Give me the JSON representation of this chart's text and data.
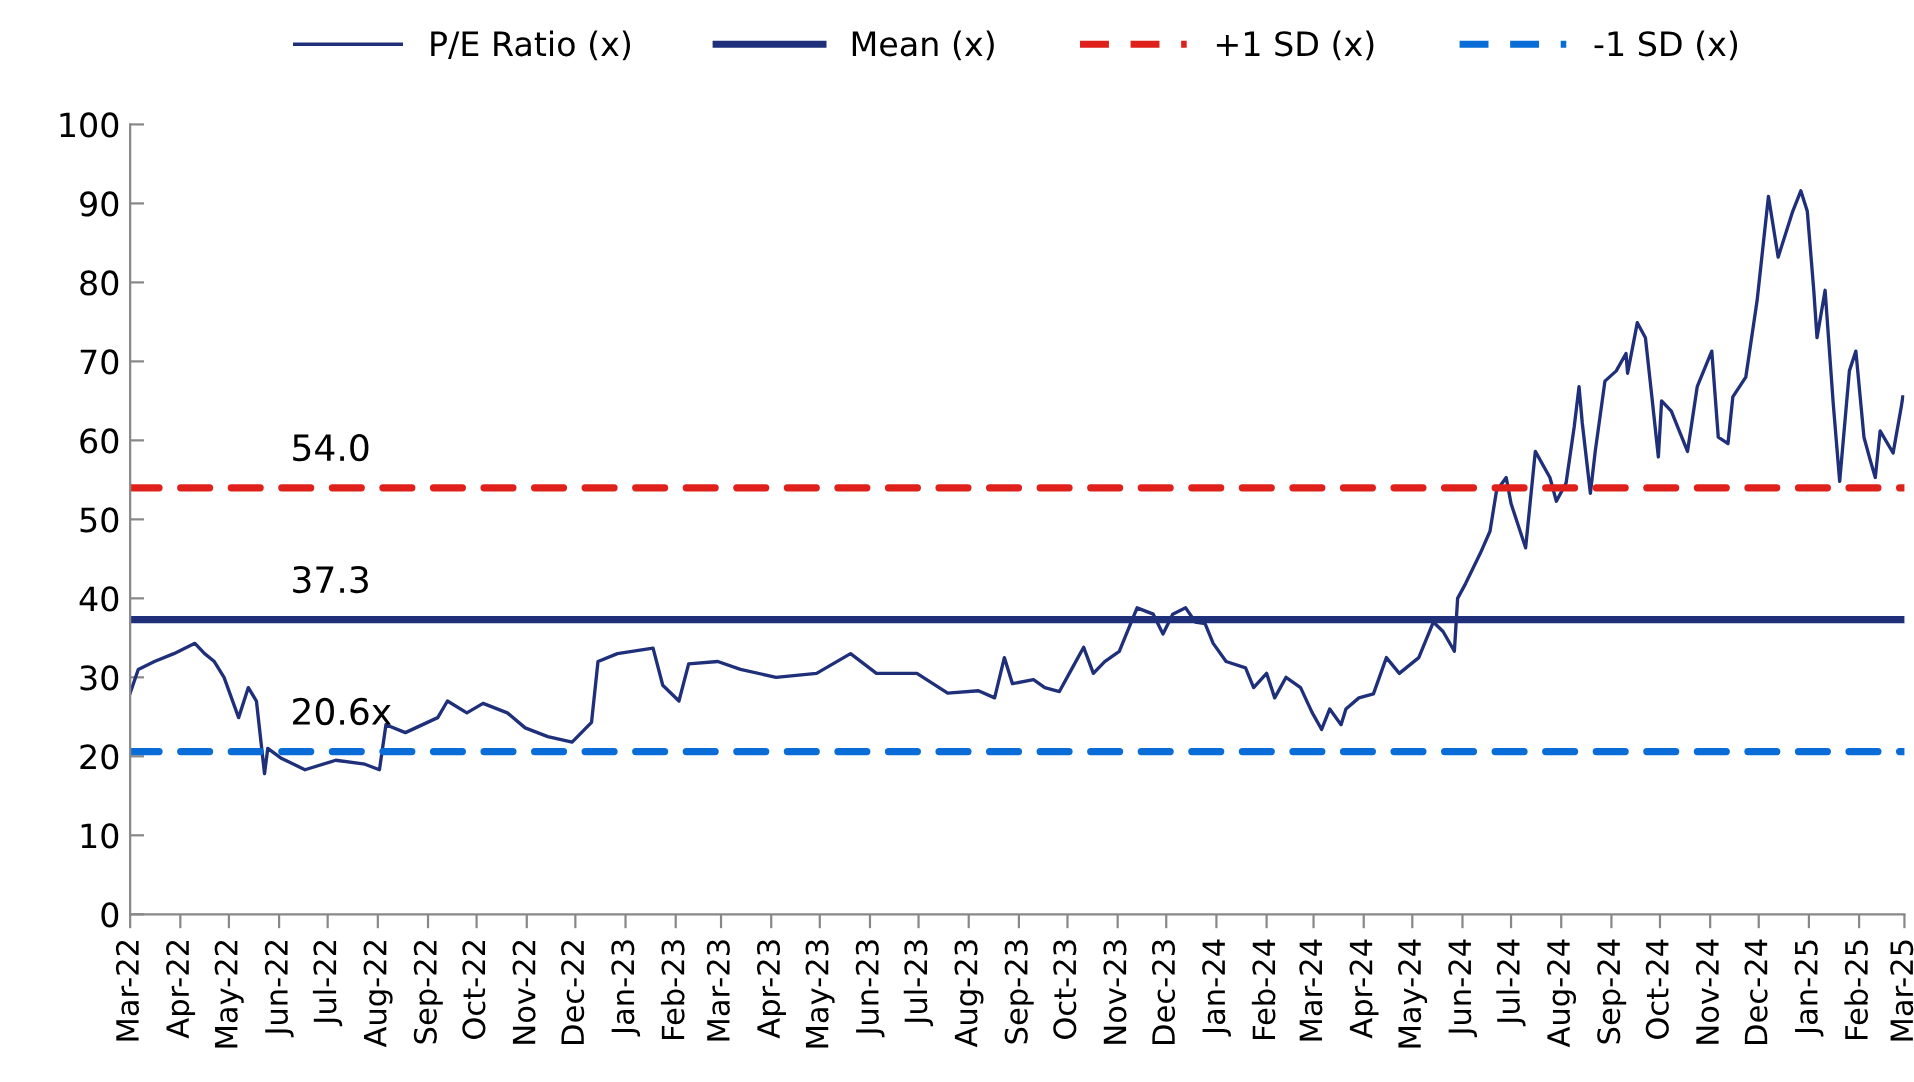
{
  "chart_data": {
    "type": "line",
    "series": [
      {
        "name": "P/E Ratio (x)",
        "color": "#1f2f7a",
        "x": [
          "2022-03-01",
          "2022-03-06",
          "2022-03-16",
          "2022-03-28",
          "2022-04-10",
          "2022-04-16",
          "2022-04-22",
          "2022-04-28",
          "2022-05-07",
          "2022-05-13",
          "2022-05-18",
          "2022-05-23",
          "2022-05-25",
          "2022-06-02",
          "2022-06-17",
          "2022-07-06",
          "2022-07-24",
          "2022-08-02",
          "2022-08-06",
          "2022-08-18",
          "2022-09-07",
          "2022-09-13",
          "2022-09-25",
          "2022-10-05",
          "2022-10-20",
          "2022-10-31",
          "2022-11-14",
          "2022-11-29",
          "2022-12-11",
          "2022-12-15",
          "2022-12-27",
          "2023-01-18",
          "2023-01-24",
          "2023-02-03",
          "2023-02-09",
          "2023-02-27",
          "2023-03-13",
          "2023-04-04",
          "2023-04-29",
          "2023-05-20",
          "2023-06-05",
          "2023-06-30",
          "2023-07-19",
          "2023-08-07",
          "2023-08-17",
          "2023-08-23",
          "2023-08-28",
          "2023-09-10",
          "2023-09-17",
          "2023-09-26",
          "2023-10-04",
          "2023-10-11",
          "2023-10-17",
          "2023-10-24",
          "2023-11-02",
          "2023-11-08",
          "2023-11-13",
          "2023-11-23",
          "2023-11-29",
          "2023-12-05",
          "2023-12-13",
          "2023-12-19",
          "2023-12-25",
          "2023-12-30",
          "2024-01-07",
          "2024-01-19",
          "2024-01-24",
          "2024-02-01",
          "2024-02-06",
          "2024-02-13",
          "2024-02-22",
          "2024-02-29",
          "2024-03-06",
          "2024-03-11",
          "2024-03-18",
          "2024-03-21",
          "2024-03-29",
          "2024-04-07",
          "2024-04-15",
          "2024-04-23",
          "2024-05-05",
          "2024-05-14",
          "2024-05-20",
          "2024-05-27",
          "2024-05-29",
          "2024-06-03",
          "2024-06-12",
          "2024-06-18",
          "2024-06-22",
          "2024-06-28",
          "2024-07-01",
          "2024-07-10",
          "2024-07-16",
          "2024-07-25",
          "2024-07-29",
          "2024-08-04",
          "2024-08-09",
          "2024-08-12",
          "2024-08-14",
          "2024-08-19",
          "2024-08-22",
          "2024-08-28",
          "2024-09-04",
          "2024-09-10",
          "2024-09-11",
          "2024-09-17",
          "2024-09-22",
          "2024-09-26",
          "2024-09-30",
          "2024-10-02",
          "2024-10-08",
          "2024-10-18",
          "2024-10-24",
          "2024-11-02",
          "2024-11-06",
          "2024-11-12",
          "2024-11-15",
          "2024-11-23",
          "2024-11-30",
          "2024-12-07",
          "2024-12-13",
          "2024-12-22",
          "2024-12-27",
          "2024-12-31",
          "2025-01-04",
          "2025-01-06",
          "2025-01-11",
          "2025-01-16",
          "2025-01-20",
          "2025-01-26",
          "2025-01-30",
          "2025-02-04",
          "2025-02-08",
          "2025-02-11",
          "2025-02-14",
          "2025-02-22",
          "2025-02-27",
          "2025-02-28"
        ],
        "values": [
          28,
          31,
          32,
          33,
          34.3,
          33,
          32,
          30,
          24.9,
          28.7,
          27,
          17.8,
          21,
          19.8,
          18.3,
          19.5,
          19,
          18.3,
          24,
          23,
          24.9,
          27,
          25.5,
          26.7,
          25.5,
          23.6,
          22.5,
          21.8,
          24.3,
          32,
          33,
          33.7,
          29,
          27,
          31.7,
          32,
          31,
          30,
          30.5,
          33,
          30.5,
          30.5,
          28,
          28.3,
          27.4,
          32.5,
          29.2,
          29.7,
          28.7,
          28.2,
          31.2,
          33.8,
          30.5,
          32,
          33.3,
          36.3,
          38.8,
          38,
          35.5,
          38,
          38.8,
          37,
          36.8,
          34.3,
          32,
          31.2,
          28.7,
          30.5,
          27.4,
          30,
          28.7,
          25.6,
          23.4,
          26,
          24,
          26,
          27.4,
          27.9,
          32.5,
          30.5,
          32.5,
          37,
          35.8,
          33.3,
          40,
          41.9,
          45.7,
          48.5,
          53.6,
          55.3,
          52,
          46.4,
          58.6,
          55.3,
          52.3,
          54.6,
          61.7,
          66.8,
          62.2,
          53.3,
          58.6,
          67.5,
          68.8,
          71,
          68.5,
          74.9,
          73,
          65.5,
          57.9,
          65,
          63.7,
          58.6,
          66.8,
          71.3,
          60.4,
          59.6,
          65.5,
          68,
          77.7,
          90.9,
          83.2,
          89,
          91.6,
          89,
          79,
          73,
          79,
          64.7,
          54.8,
          68.8,
          71.3,
          60.4,
          57.4,
          55.3,
          61.2,
          58.4,
          64.2,
          65.5
        ]
      },
      {
        "name": "Mean (x)",
        "color": "#1f2f7a",
        "line_style": "solid",
        "x": [
          "2022-03-01",
          "2025-03-01"
        ],
        "values": [
          37.3,
          37.3
        ]
      },
      {
        "name": "+1 SD (x)",
        "color": "#e0201b",
        "line_style": "dashed",
        "x": [
          "2022-03-01",
          "2025-03-01"
        ],
        "values": [
          54.0,
          54.0
        ]
      },
      {
        "name": "-1 SD (x)",
        "color": "#0a6cd6",
        "line_style": "dashed",
        "x": [
          "2022-03-01",
          "2025-03-01"
        ],
        "values": [
          20.6,
          20.6
        ]
      }
    ],
    "annotations": [
      {
        "text": "54.0",
        "x": "2022-06-08",
        "y": 54.0
      },
      {
        "text": "37.3",
        "x": "2022-06-08",
        "y": 37.3
      },
      {
        "text": "20.6x",
        "x": "2022-06-08",
        "y": 20.6
      }
    ],
    "xlim": [
      "2022-03-01",
      "2025-03-01"
    ],
    "xticks": [
      {
        "value": "2022-03-01",
        "label": "Mar-22"
      },
      {
        "value": "2022-04-01",
        "label": "Apr-22"
      },
      {
        "value": "2022-05-01",
        "label": "May-22"
      },
      {
        "value": "2022-06-01",
        "label": "Jun-22"
      },
      {
        "value": "2022-07-01",
        "label": "Jul-22"
      },
      {
        "value": "2022-08-01",
        "label": "Aug-22"
      },
      {
        "value": "2022-09-01",
        "label": "Sep-22"
      },
      {
        "value": "2022-10-01",
        "label": "Oct-22"
      },
      {
        "value": "2022-11-01",
        "label": "Nov-22"
      },
      {
        "value": "2022-12-01",
        "label": "Dec-22"
      },
      {
        "value": "2023-01-01",
        "label": "Jan-23"
      },
      {
        "value": "2023-02-01",
        "label": "Feb-23"
      },
      {
        "value": "2023-03-01",
        "label": "Mar-23"
      },
      {
        "value": "2023-04-01",
        "label": "Apr-23"
      },
      {
        "value": "2023-05-01",
        "label": "May-23"
      },
      {
        "value": "2023-06-01",
        "label": "Jun-23"
      },
      {
        "value": "2023-07-01",
        "label": "Jul-23"
      },
      {
        "value": "2023-08-01",
        "label": "Aug-23"
      },
      {
        "value": "2023-09-01",
        "label": "Sep-23"
      },
      {
        "value": "2023-10-01",
        "label": "Oct-23"
      },
      {
        "value": "2023-11-01",
        "label": "Nov-23"
      },
      {
        "value": "2023-12-01",
        "label": "Dec-23"
      },
      {
        "value": "2024-01-01",
        "label": "Jan-24"
      },
      {
        "value": "2024-02-01",
        "label": "Feb-24"
      },
      {
        "value": "2024-03-01",
        "label": "Mar-24"
      },
      {
        "value": "2024-04-01",
        "label": "Apr-24"
      },
      {
        "value": "2024-05-01",
        "label": "May-24"
      },
      {
        "value": "2024-06-01",
        "label": "Jun-24"
      },
      {
        "value": "2024-07-01",
        "label": "Jul-24"
      },
      {
        "value": "2024-08-01",
        "label": "Aug-24"
      },
      {
        "value": "2024-09-01",
        "label": "Sep-24"
      },
      {
        "value": "2024-10-01",
        "label": "Oct-24"
      },
      {
        "value": "2024-11-01",
        "label": "Nov-24"
      },
      {
        "value": "2024-12-01",
        "label": "Dec-24"
      },
      {
        "value": "2025-01-01",
        "label": "Jan-25"
      },
      {
        "value": "2025-02-01",
        "label": "Feb-25"
      },
      {
        "value": "2025-03-01",
        "label": "Mar-25"
      }
    ],
    "ylim": [
      0,
      100
    ],
    "yticks": [
      0,
      10,
      20,
      30,
      40,
      50,
      60,
      70,
      80,
      90,
      100
    ],
    "grid": false,
    "legend": "top",
    "marker": "none"
  }
}
